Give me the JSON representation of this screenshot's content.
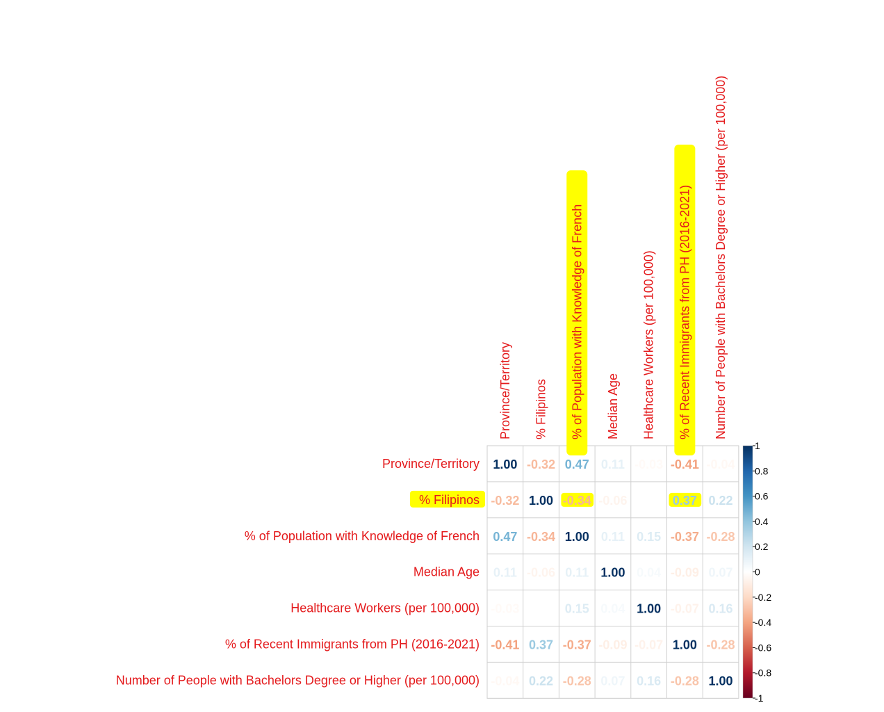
{
  "chart_data": {
    "type": "heatmap",
    "subtype": "correlation-matrix",
    "variables": [
      "Province/Territory",
      "% Filipinos",
      "% of Population with Knowledge of French",
      "Median Age",
      "Healthcare Workers (per 100,000)",
      "% of Recent Immigrants from PH (2016-2021)",
      "Number of People with Bachelors Degree or Higher (per 100,000)"
    ],
    "matrix": [
      [
        1.0,
        -0.32,
        0.47,
        0.11,
        -0.03,
        -0.41,
        -0.04
      ],
      [
        -0.32,
        1.0,
        -0.34,
        -0.06,
        0.0,
        0.37,
        0.22
      ],
      [
        0.47,
        -0.34,
        1.0,
        0.11,
        0.15,
        -0.37,
        -0.28
      ],
      [
        0.11,
        -0.06,
        0.11,
        1.0,
        0.04,
        -0.09,
        0.07
      ],
      [
        -0.03,
        0.0,
        0.15,
        0.04,
        1.0,
        -0.07,
        0.16
      ],
      [
        -0.41,
        0.37,
        -0.37,
        -0.09,
        -0.07,
        1.0,
        -0.28
      ],
      [
        -0.04,
        0.22,
        -0.28,
        0.07,
        0.16,
        -0.28,
        1.0
      ]
    ],
    "color_scale": {
      "min": -1,
      "max": 1,
      "ticks": [
        "1",
        "0.8",
        "0.6",
        "0.4",
        "0.2",
        "0",
        "-0.2",
        "-0.4",
        "-0.6",
        "-0.8",
        "-1"
      ],
      "negative_color": "#67001f",
      "neutral_color": "#ffffff",
      "positive_color": "#053061"
    },
    "label_color": "#e41a1c",
    "highlight_color": "#ffff00",
    "highlights": {
      "column_labels": [
        2,
        5
      ],
      "row_labels": [
        1
      ],
      "cells": [
        [
          1,
          2
        ],
        [
          1,
          5
        ]
      ]
    },
    "grid": true,
    "legend": "right"
  }
}
